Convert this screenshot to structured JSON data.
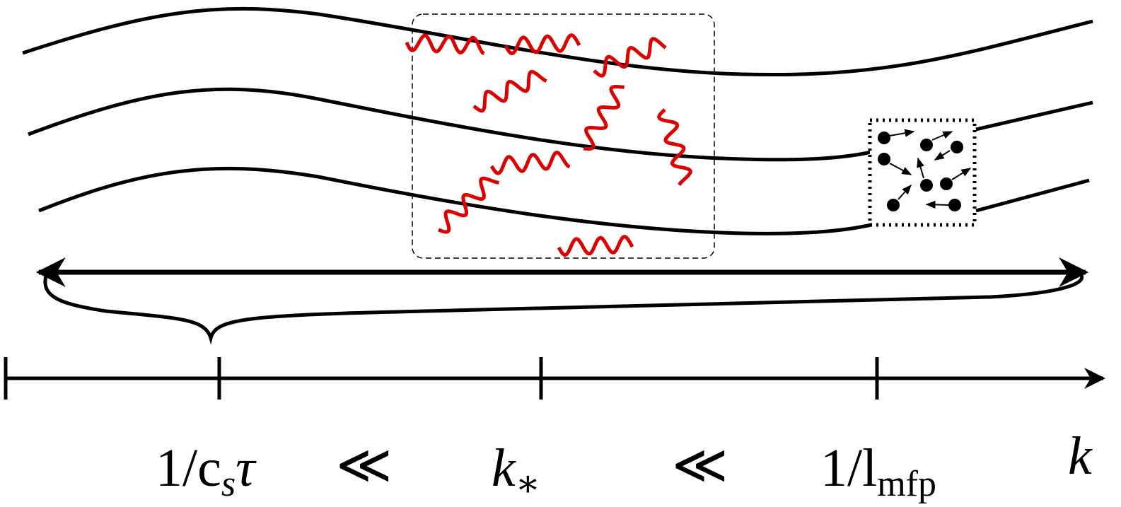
{
  "labels": {
    "scale_sound": {
      "base": "1/c",
      "sub": "s",
      "tail": "τ"
    },
    "much_less_1": "≪",
    "k_star": {
      "base": "k",
      "sub": "∗"
    },
    "much_less_2": "≪",
    "scale_mfp": {
      "base": "1/l",
      "sub": "mfp"
    },
    "k_axis": "k"
  }
}
